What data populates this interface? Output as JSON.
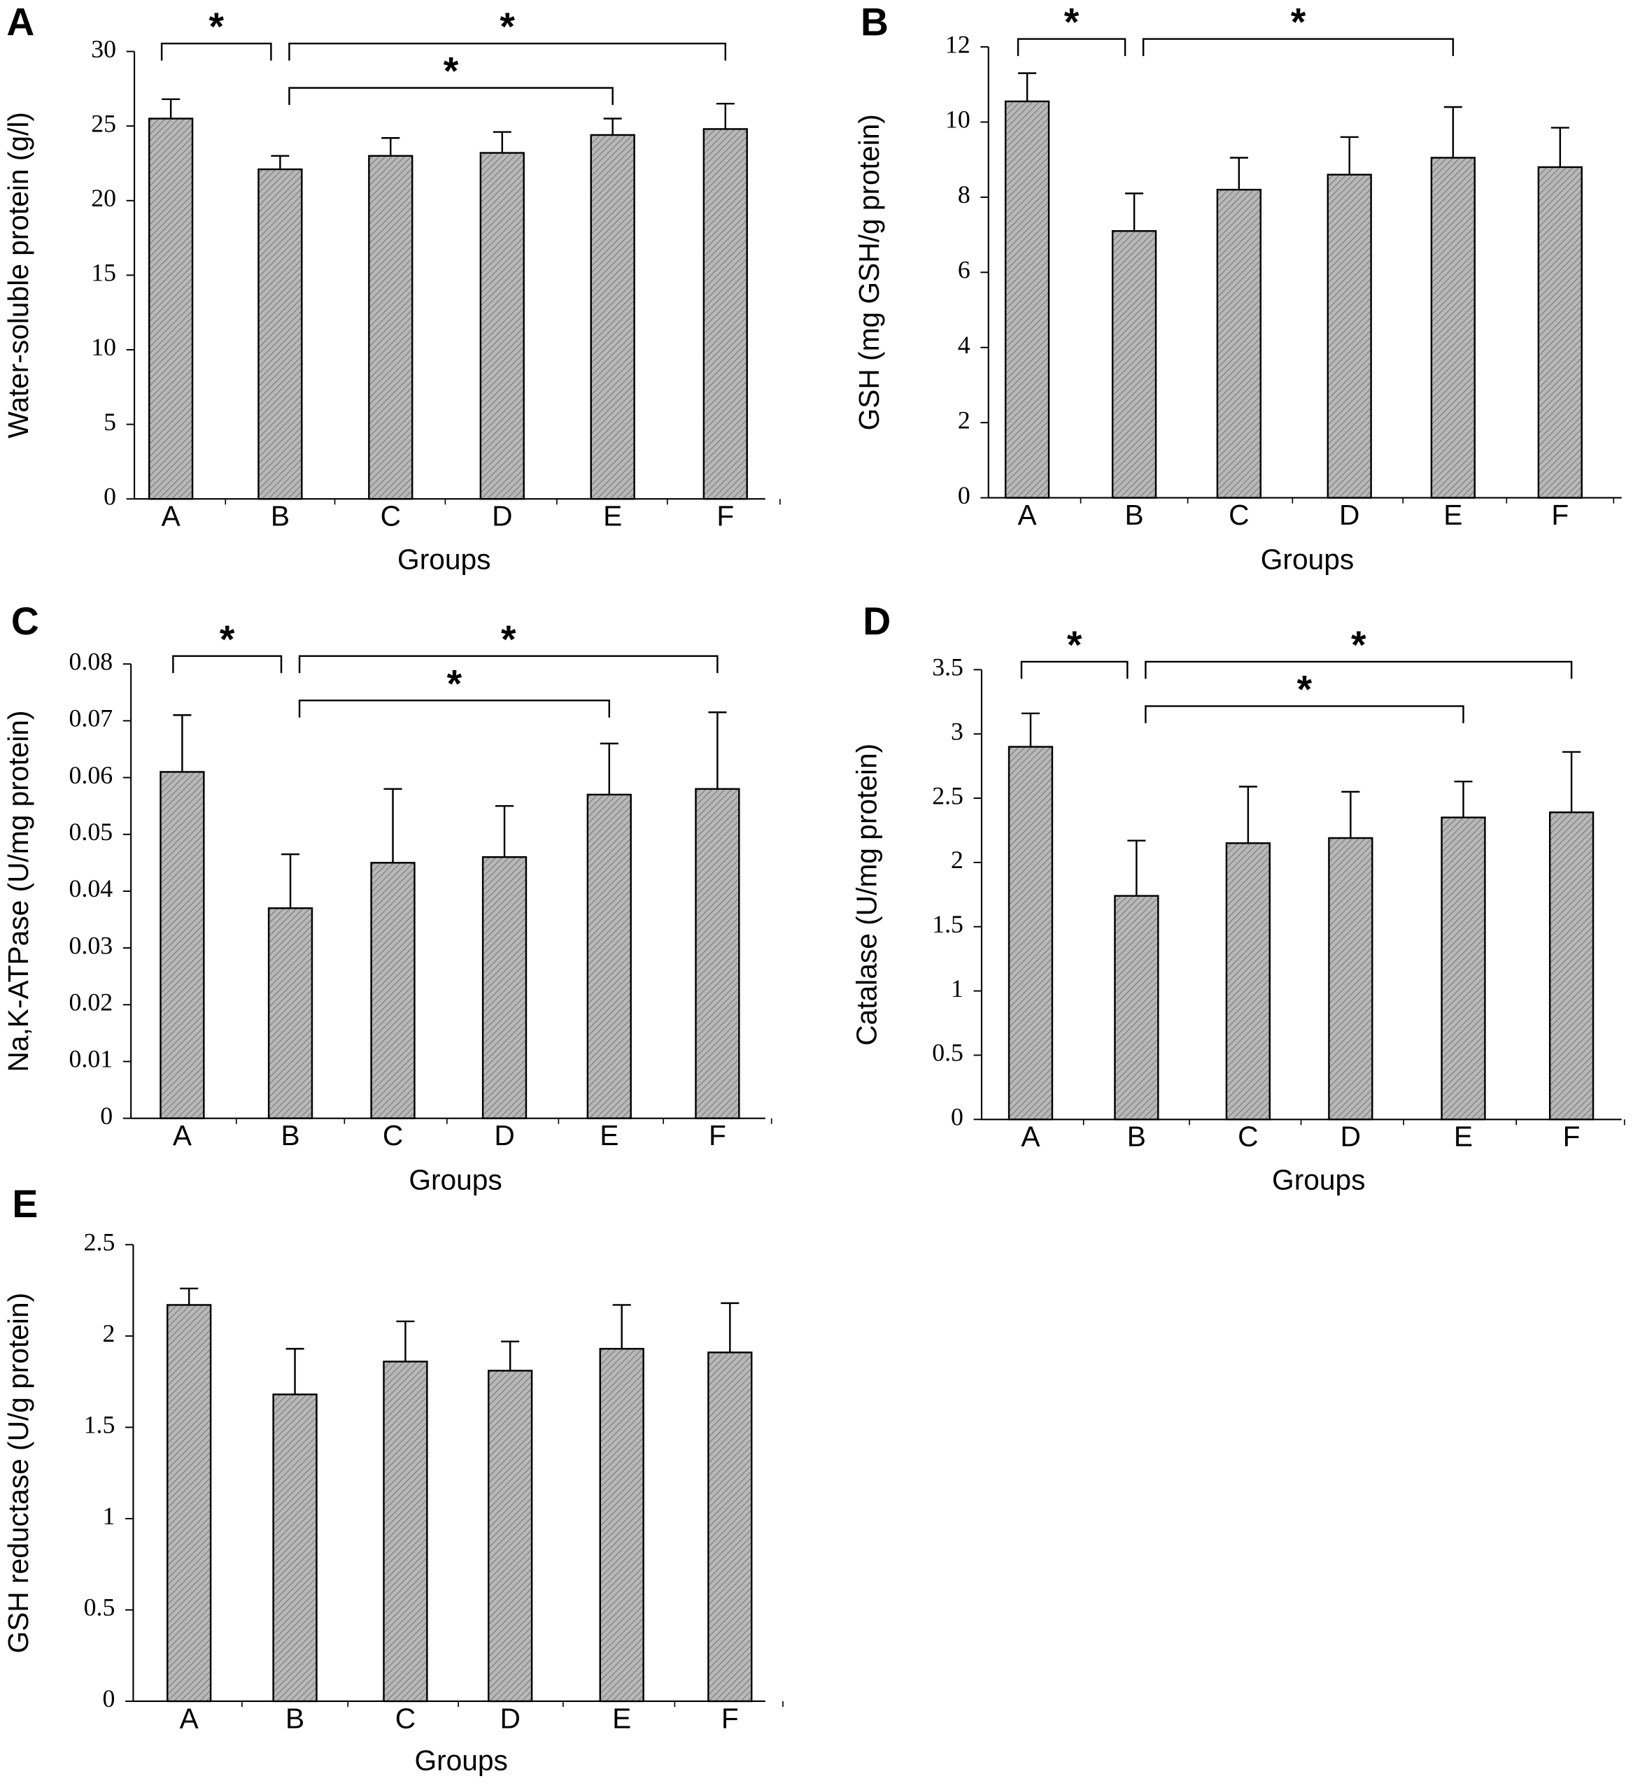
{
  "chart_data": [
    {
      "type": "bar",
      "panel_label": "A",
      "x_label": "Groups",
      "y_label": "Water-soluble protein (g/l)",
      "categories": [
        "A",
        "B",
        "C",
        "D",
        "E",
        "F"
      ],
      "values": [
        25.5,
        22.1,
        23.0,
        23.2,
        24.4,
        24.8
      ],
      "errors": [
        1.3,
        0.9,
        1.2,
        1.4,
        1.1,
        1.7
      ],
      "color": "#a9a9a9",
      "ylim": [
        0,
        30
      ],
      "yticks": [
        0,
        5,
        10,
        15,
        20,
        25,
        30
      ],
      "brackets": [
        {
          "from": "A",
          "to": "B",
          "label": "*"
        },
        {
          "from": "B",
          "to": "F",
          "label": "*"
        },
        {
          "from": "B",
          "to": "E",
          "label": "*"
        }
      ]
    },
    {
      "type": "bar",
      "panel_label": "B",
      "x_label": "Groups",
      "y_label": "GSH (mg GSH/g protein)",
      "categories": [
        "A",
        "B",
        "C",
        "D",
        "E",
        "F"
      ],
      "values": [
        10.55,
        7.1,
        8.2,
        8.6,
        9.05,
        8.8
      ],
      "errors": [
        0.75,
        1.0,
        0.85,
        1.0,
        1.35,
        1.05
      ],
      "color": "#a9a9a9",
      "ylim": [
        0,
        12
      ],
      "yticks": [
        0,
        2,
        4,
        6,
        8,
        10,
        12
      ],
      "brackets": [
        {
          "from": "A",
          "to": "B",
          "label": "*"
        },
        {
          "from": "B",
          "to": "E",
          "label": "*"
        }
      ]
    },
    {
      "type": "bar",
      "panel_label": "C",
      "x_label": "Groups",
      "y_label": "Na,K-ATPase (U/mg protein)",
      "categories": [
        "A",
        "B",
        "C",
        "D",
        "E",
        "F"
      ],
      "values": [
        0.061,
        0.037,
        0.045,
        0.046,
        0.057,
        0.058
      ],
      "errors": [
        0.01,
        0.0095,
        0.013,
        0.009,
        0.009,
        0.0135
      ],
      "color": "#a9a9a9",
      "ylim": [
        0,
        0.08
      ],
      "yticks": [
        0,
        0.01,
        0.02,
        0.03,
        0.04,
        0.05,
        0.06,
        0.07,
        0.08
      ],
      "brackets": [
        {
          "from": "A",
          "to": "B",
          "label": "*"
        },
        {
          "from": "B",
          "to": "F",
          "label": "*"
        },
        {
          "from": "B",
          "to": "E",
          "label": "*"
        }
      ]
    },
    {
      "type": "bar",
      "panel_label": "D",
      "x_label": "Groups",
      "y_label": "Catalase (U/mg protein)",
      "categories": [
        "A",
        "B",
        "C",
        "D",
        "E",
        "F"
      ],
      "values": [
        2.9,
        1.74,
        2.15,
        2.19,
        2.35,
        2.39
      ],
      "errors": [
        0.26,
        0.43,
        0.44,
        0.36,
        0.28,
        0.47
      ],
      "color": "#a9a9a9",
      "ylim": [
        0,
        3.5
      ],
      "yticks": [
        0,
        0.5,
        1,
        1.5,
        2,
        2.5,
        3,
        3.5
      ],
      "brackets": [
        {
          "from": "A",
          "to": "B",
          "label": "*"
        },
        {
          "from": "B",
          "to": "F",
          "label": "*"
        },
        {
          "from": "B",
          "to": "E",
          "label": "*"
        }
      ]
    },
    {
      "type": "bar",
      "panel_label": "E",
      "x_label": "Groups",
      "y_label": "GSH reductase (U/g protein)",
      "categories": [
        "A",
        "B",
        "C",
        "D",
        "E",
        "F"
      ],
      "values": [
        2.17,
        1.68,
        1.86,
        1.81,
        1.93,
        1.91
      ],
      "errors": [
        0.09,
        0.25,
        0.22,
        0.16,
        0.24,
        0.27
      ],
      "color": "#a9a9a9",
      "ylim": [
        0,
        2.5
      ],
      "yticks": [
        0,
        0.5,
        1,
        1.5,
        2,
        2.5
      ],
      "brackets": []
    }
  ]
}
